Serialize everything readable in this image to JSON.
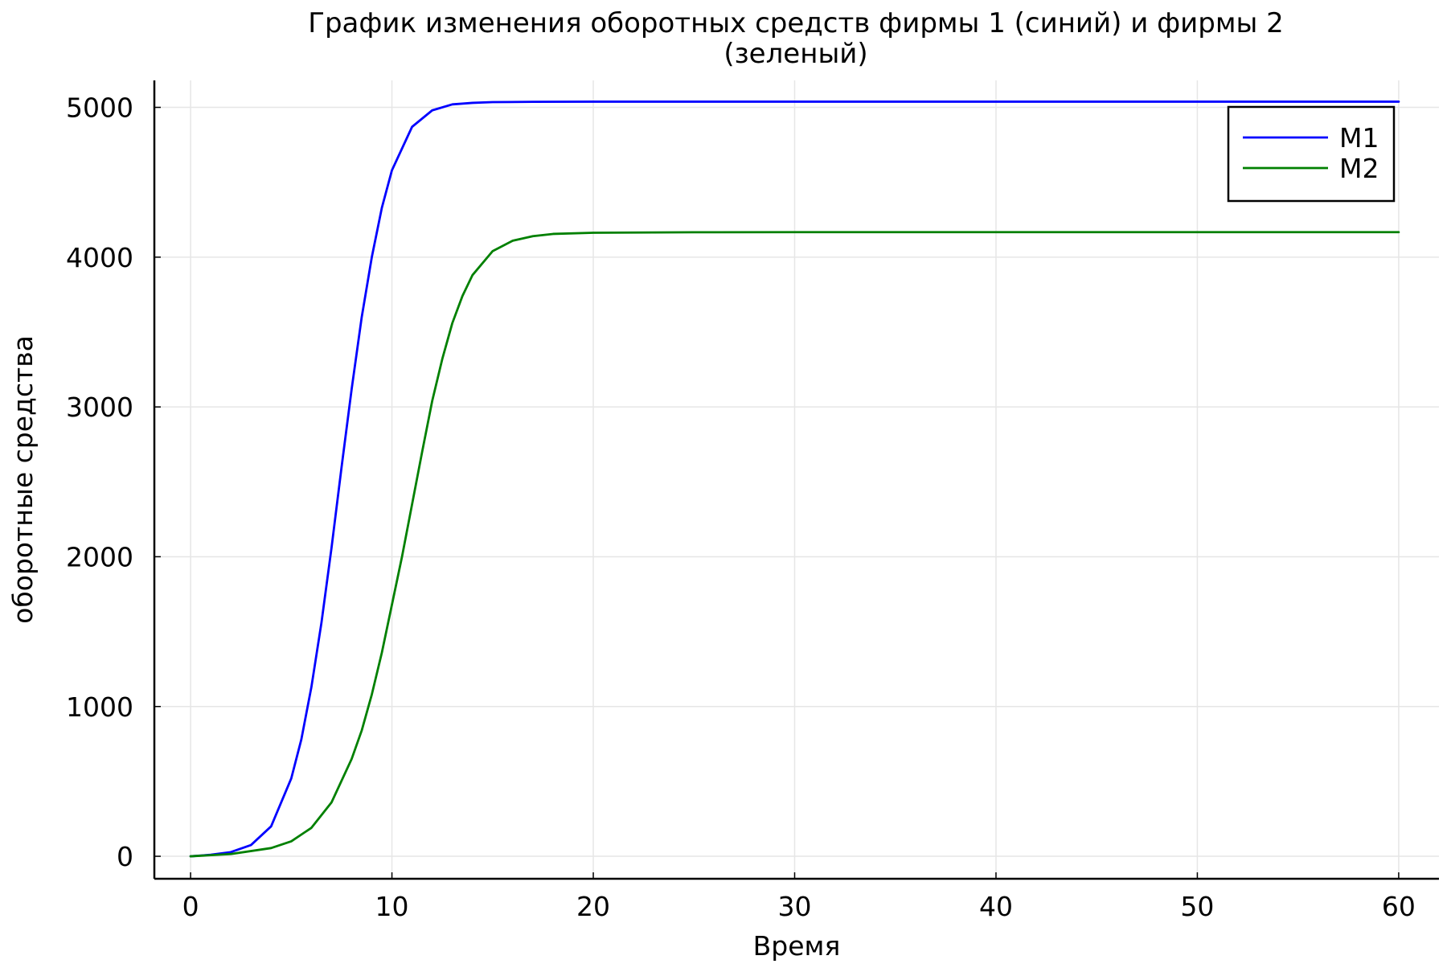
{
  "chart_data": {
    "type": "line",
    "title": "График изменения оборотных средств фирмы 1 (синий) и фирмы 2 (зеленый)",
    "title_lines": [
      "График изменения оборотных средств фирмы 1 (синий) и фирмы 2",
      "(зеленый)"
    ],
    "xlabel": "Время",
    "ylabel": "оборотные средства",
    "xlim": [
      -1.8,
      62
    ],
    "ylim": [
      -150,
      5180
    ],
    "xticks": [
      0,
      10,
      20,
      30,
      40,
      50,
      60
    ],
    "yticks": [
      0,
      1000,
      2000,
      3000,
      4000,
      5000
    ],
    "grid": true,
    "legend_position": "top-right",
    "series": [
      {
        "name": "M1",
        "color": "#0000ff",
        "x": [
          0,
          1,
          2,
          3,
          4,
          5,
          5.5,
          6,
          6.5,
          7,
          7.5,
          8,
          8.5,
          9,
          9.5,
          10,
          11,
          12,
          13,
          14,
          15,
          17,
          20,
          25,
          30,
          40,
          50,
          60
        ],
        "y": [
          0,
          10,
          28,
          75,
          200,
          520,
          780,
          1130,
          1560,
          2060,
          2600,
          3120,
          3600,
          4000,
          4330,
          4580,
          4870,
          4980,
          5020,
          5030,
          5035,
          5037,
          5038,
          5038,
          5038,
          5038,
          5038,
          5038
        ]
      },
      {
        "name": "M2",
        "color": "#008000",
        "x": [
          0,
          2,
          4,
          5,
          6,
          7,
          8,
          8.5,
          9,
          9.5,
          10,
          10.5,
          11,
          11.5,
          12,
          12.5,
          13,
          13.5,
          14,
          15,
          16,
          17,
          18,
          20,
          25,
          30,
          40,
          50,
          60
        ],
        "y": [
          0,
          15,
          55,
          100,
          190,
          360,
          650,
          840,
          1080,
          1360,
          1680,
          2000,
          2350,
          2700,
          3040,
          3320,
          3560,
          3740,
          3880,
          4040,
          4110,
          4140,
          4155,
          4163,
          4166,
          4167,
          4167,
          4167,
          4167
        ]
      }
    ]
  }
}
